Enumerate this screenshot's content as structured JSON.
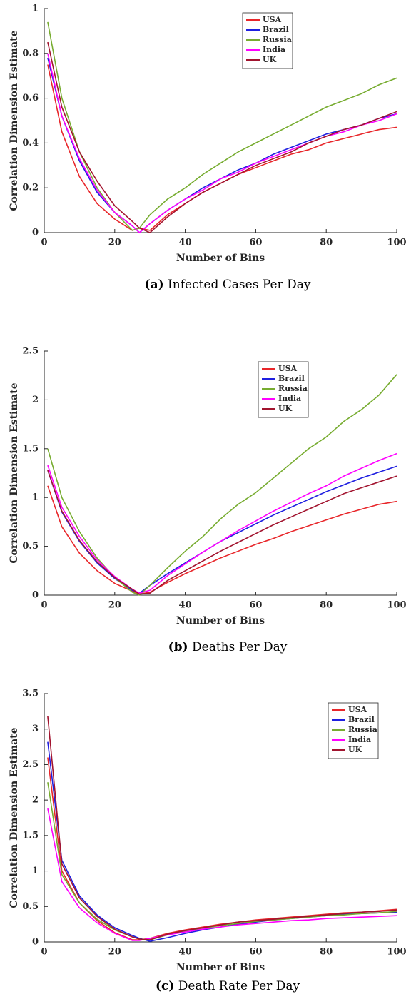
{
  "chart_data": [
    {
      "type": "line",
      "caption_label": "(a)",
      "caption": "Infected Cases Per Day",
      "xlabel": "Number of Bins",
      "ylabel": "Correlation Dimension Estimate",
      "xlim": [
        0,
        100
      ],
      "xticks": [
        0,
        20,
        40,
        60,
        80,
        100
      ],
      "ylim": [
        0,
        1
      ],
      "yticks": [
        0,
        0.2,
        0.4,
        0.6,
        0.8,
        1
      ],
      "legend": "upper right",
      "x": [
        1,
        5,
        10,
        15,
        20,
        25,
        27,
        30,
        35,
        40,
        45,
        50,
        55,
        60,
        65,
        70,
        75,
        80,
        85,
        90,
        95,
        100
      ],
      "series": [
        {
          "name": "USA",
          "color": "#e8262a",
          "values": [
            0.75,
            0.45,
            0.25,
            0.13,
            0.06,
            0.01,
            0.02,
            0.01,
            0.08,
            0.13,
            0.18,
            0.22,
            0.26,
            0.29,
            0.32,
            0.35,
            0.37,
            0.4,
            0.42,
            0.44,
            0.46,
            0.47
          ]
        },
        {
          "name": "Brazil",
          "color": "#1f1fe0",
          "values": [
            0.78,
            0.52,
            0.32,
            0.18,
            0.09,
            0.03,
            0.0,
            0.04,
            0.1,
            0.15,
            0.2,
            0.24,
            0.28,
            0.31,
            0.35,
            0.38,
            0.41,
            0.44,
            0.46,
            0.48,
            0.51,
            0.53
          ]
        },
        {
          "name": "Russia",
          "color": "#77ac30",
          "values": [
            0.94,
            0.6,
            0.36,
            0.2,
            0.09,
            0.01,
            0.02,
            0.08,
            0.15,
            0.2,
            0.26,
            0.31,
            0.36,
            0.4,
            0.44,
            0.48,
            0.52,
            0.56,
            0.59,
            0.62,
            0.66,
            0.69
          ]
        },
        {
          "name": "India",
          "color": "#ff00ff",
          "values": [
            0.8,
            0.52,
            0.33,
            0.19,
            0.09,
            0.03,
            0.0,
            0.04,
            0.1,
            0.15,
            0.19,
            0.24,
            0.27,
            0.31,
            0.34,
            0.37,
            0.4,
            0.43,
            0.45,
            0.48,
            0.5,
            0.53
          ]
        },
        {
          "name": "UK",
          "color": "#a2142f",
          "values": [
            0.85,
            0.56,
            0.36,
            0.23,
            0.12,
            0.05,
            0.02,
            0.0,
            0.07,
            0.13,
            0.18,
            0.22,
            0.26,
            0.3,
            0.33,
            0.36,
            0.4,
            0.43,
            0.46,
            0.48,
            0.51,
            0.54
          ]
        }
      ]
    },
    {
      "type": "line",
      "caption_label": "(b)",
      "caption": "Deaths Per Day",
      "xlabel": "Number of Bins",
      "ylabel": "Correlation Dimension Estimate",
      "xlim": [
        0,
        100
      ],
      "xticks": [
        0,
        20,
        40,
        60,
        80,
        100
      ],
      "ylim": [
        0,
        2.5
      ],
      "yticks": [
        0,
        0.5,
        1,
        1.5,
        2,
        2.5
      ],
      "legend": "upper right",
      "x": [
        1,
        5,
        10,
        15,
        20,
        25,
        27,
        30,
        35,
        40,
        45,
        50,
        55,
        60,
        65,
        70,
        75,
        80,
        85,
        90,
        95,
        100
      ],
      "series": [
        {
          "name": "USA",
          "color": "#e8262a",
          "values": [
            1.12,
            0.7,
            0.43,
            0.25,
            0.12,
            0.04,
            0.01,
            0.03,
            0.13,
            0.22,
            0.3,
            0.38,
            0.45,
            0.52,
            0.58,
            0.65,
            0.71,
            0.77,
            0.83,
            0.88,
            0.93,
            0.96
          ]
        },
        {
          "name": "Brazil",
          "color": "#1f1fe0",
          "values": [
            1.28,
            0.85,
            0.55,
            0.33,
            0.17,
            0.05,
            0.02,
            0.1,
            0.22,
            0.33,
            0.44,
            0.55,
            0.64,
            0.73,
            0.82,
            0.9,
            0.98,
            1.06,
            1.13,
            1.2,
            1.26,
            1.32
          ]
        },
        {
          "name": "Russia",
          "color": "#77ac30",
          "values": [
            1.5,
            1.0,
            0.65,
            0.38,
            0.18,
            0.03,
            0.0,
            0.1,
            0.28,
            0.45,
            0.6,
            0.78,
            0.93,
            1.05,
            1.2,
            1.35,
            1.5,
            1.62,
            1.78,
            1.9,
            2.05,
            2.26
          ]
        },
        {
          "name": "India",
          "color": "#ff00ff",
          "values": [
            1.33,
            0.9,
            0.6,
            0.36,
            0.19,
            0.06,
            0.02,
            0.05,
            0.2,
            0.32,
            0.44,
            0.55,
            0.66,
            0.76,
            0.86,
            0.95,
            1.04,
            1.12,
            1.22,
            1.3,
            1.38,
            1.45
          ]
        },
        {
          "name": "UK",
          "color": "#a2142f",
          "values": [
            1.28,
            0.86,
            0.56,
            0.34,
            0.18,
            0.06,
            0.01,
            0.02,
            0.15,
            0.25,
            0.35,
            0.45,
            0.54,
            0.63,
            0.72,
            0.8,
            0.88,
            0.96,
            1.04,
            1.1,
            1.16,
            1.22
          ]
        }
      ]
    },
    {
      "type": "line",
      "caption_label": "(c)",
      "caption": "Death Rate Per Day",
      "xlabel": "Number of Bins",
      "ylabel": "Correlation Dimension Estimate",
      "xlim": [
        0,
        100
      ],
      "xticks": [
        0,
        20,
        40,
        60,
        80,
        100
      ],
      "ylim": [
        0,
        3.5
      ],
      "yticks": [
        0,
        0.5,
        1,
        1.5,
        2,
        2.5,
        3,
        3.5
      ],
      "legend": "upper right",
      "x": [
        1,
        5,
        10,
        15,
        20,
        25,
        27,
        30,
        35,
        40,
        45,
        50,
        55,
        60,
        65,
        70,
        75,
        80,
        85,
        90,
        95,
        100
      ],
      "series": [
        {
          "name": "USA",
          "color": "#e8262a",
          "values": [
            2.6,
            1.0,
            0.55,
            0.3,
            0.13,
            0.03,
            0.03,
            0.05,
            0.12,
            0.17,
            0.21,
            0.25,
            0.28,
            0.31,
            0.33,
            0.35,
            0.37,
            0.39,
            0.41,
            0.42,
            0.44,
            0.46
          ]
        },
        {
          "name": "Brazil",
          "color": "#1f1fe0",
          "values": [
            2.82,
            1.15,
            0.65,
            0.38,
            0.2,
            0.09,
            0.05,
            0.01,
            0.06,
            0.12,
            0.17,
            0.21,
            0.25,
            0.28,
            0.31,
            0.33,
            0.35,
            0.37,
            0.39,
            0.4,
            0.41,
            0.42
          ]
        },
        {
          "name": "Russia",
          "color": "#77ac30",
          "values": [
            2.25,
            0.95,
            0.55,
            0.32,
            0.17,
            0.07,
            0.04,
            0.03,
            0.1,
            0.15,
            0.19,
            0.23,
            0.26,
            0.29,
            0.31,
            0.33,
            0.35,
            0.37,
            0.38,
            0.4,
            0.41,
            0.43
          ]
        },
        {
          "name": "India",
          "color": "#ff00ff",
          "values": [
            1.88,
            0.85,
            0.48,
            0.27,
            0.12,
            0.02,
            0.02,
            0.05,
            0.1,
            0.14,
            0.18,
            0.21,
            0.24,
            0.26,
            0.28,
            0.3,
            0.31,
            0.33,
            0.34,
            0.35,
            0.36,
            0.37
          ]
        },
        {
          "name": "UK",
          "color": "#a2142f",
          "values": [
            3.18,
            1.1,
            0.62,
            0.36,
            0.18,
            0.07,
            0.04,
            0.03,
            0.11,
            0.16,
            0.2,
            0.24,
            0.28,
            0.3,
            0.32,
            0.34,
            0.36,
            0.38,
            0.4,
            0.42,
            0.43,
            0.45
          ]
        }
      ]
    }
  ]
}
